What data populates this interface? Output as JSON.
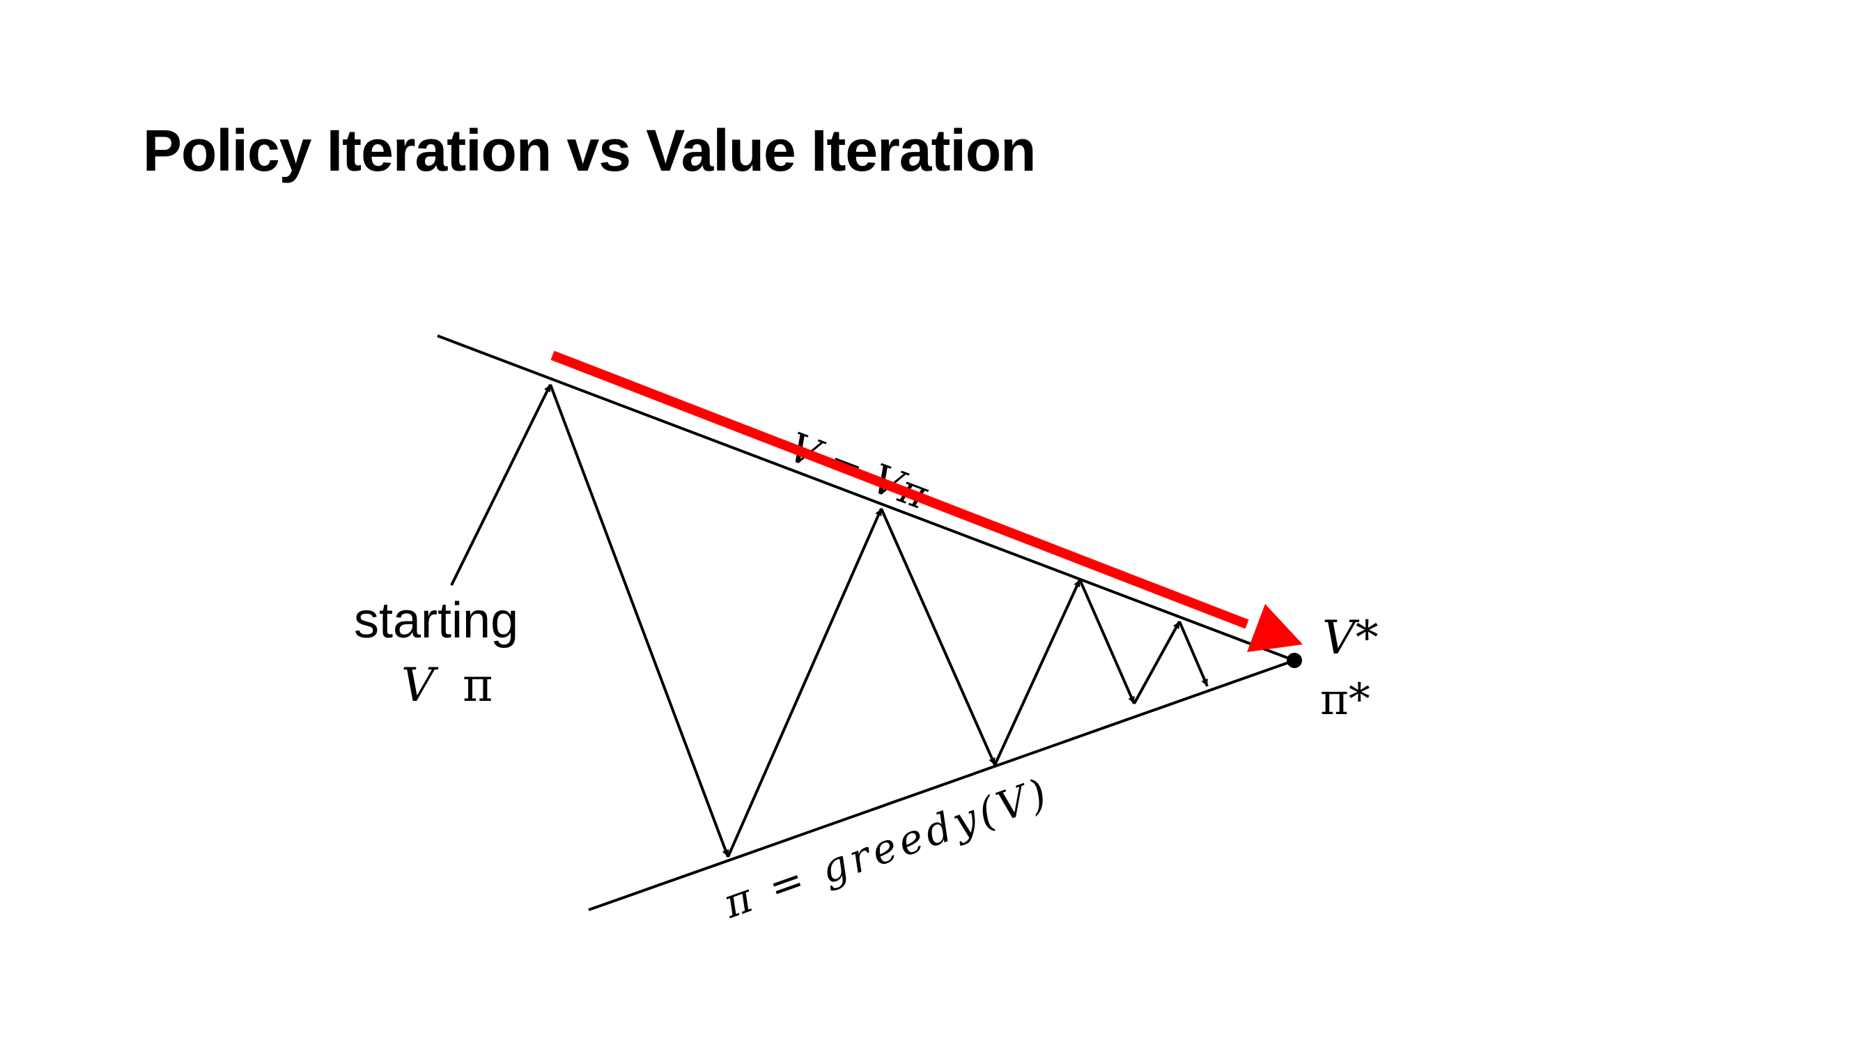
{
  "slide": {
    "title": "Policy Iteration vs Value Iteration"
  },
  "diagram": {
    "labels": {
      "starting": "starting",
      "start_v": "V",
      "start_pi": "π",
      "top_line": "V = Vπ",
      "bottom_line": "π = greedy(V)",
      "optimal_v": "V*",
      "optimal_pi": "π*"
    },
    "colors": {
      "line": "#000000",
      "value_iteration_arrow": "#ff0000"
    }
  }
}
